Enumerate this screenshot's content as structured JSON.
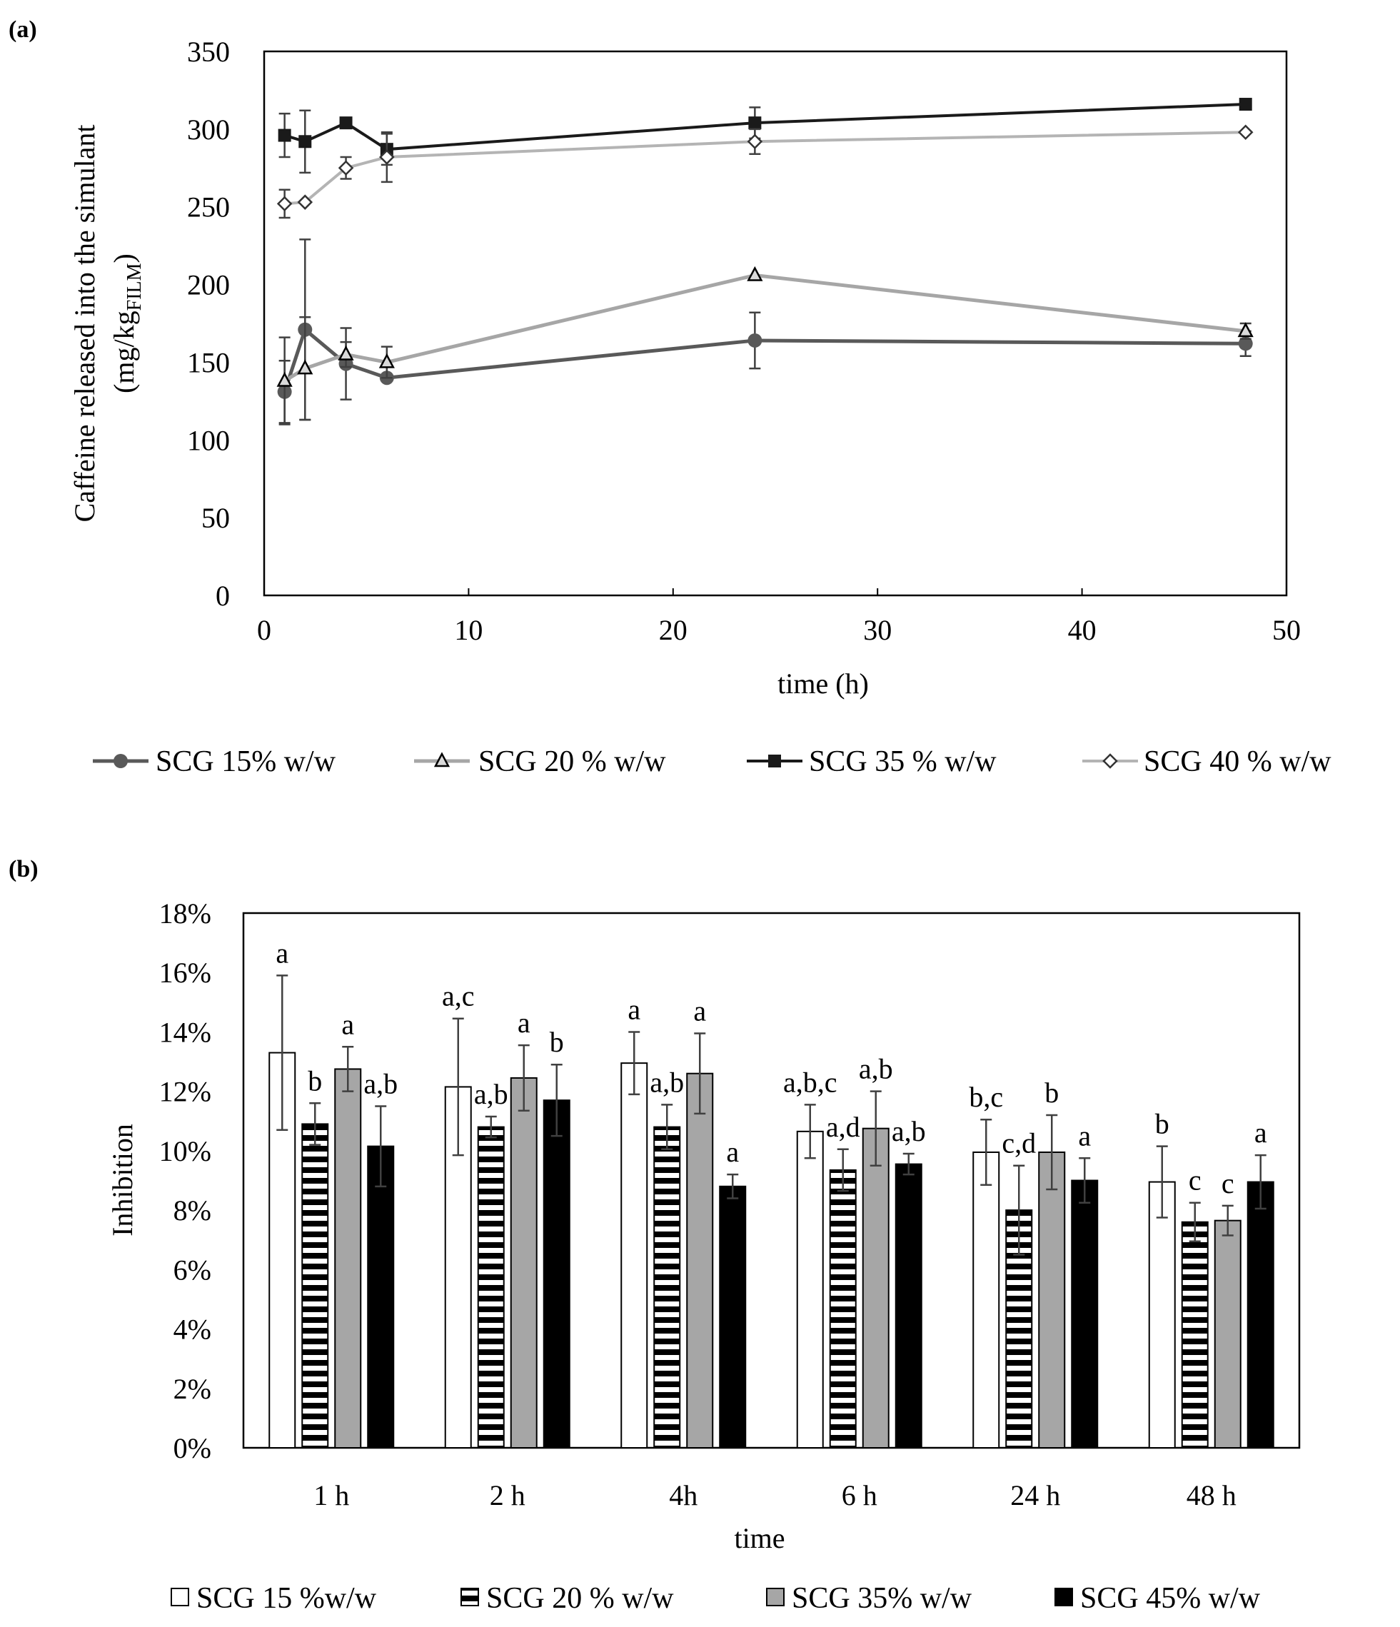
{
  "panel_a_label": "(a)",
  "panel_b_label": "(b)",
  "colors": {
    "s15_line": "#595959",
    "s20_line": "#a6a6a6",
    "s35_line": "#1a1a1a",
    "s40_line": "#b4b4b4",
    "err": "#404040",
    "bar_gray": "#a6a6a6",
    "bar_black": "#000000"
  },
  "chart_data": [
    {
      "type": "line",
      "title": "",
      "xlabel": "time (h)",
      "ylabel_line1": "Caffeine released into the simulant",
      "ylabel_line2_main": "(mg/kg",
      "ylabel_line2_sub": "FILM",
      "ylabel_line2_close": ")",
      "xlim": [
        0,
        50
      ],
      "ylim": [
        0,
        350
      ],
      "xticks": [
        0,
        10,
        20,
        30,
        40,
        50
      ],
      "yticks": [
        0,
        50,
        100,
        150,
        200,
        250,
        300,
        350
      ],
      "x": [
        1,
        2,
        4,
        6,
        24,
        48
      ],
      "legend_position": "bottom",
      "series": [
        {
          "name": "SCG 15% w/w",
          "marker": "circle",
          "values": [
            131,
            171,
            149,
            140,
            164,
            162
          ],
          "errors": [
            20,
            58,
            23,
            0,
            18,
            8
          ]
        },
        {
          "name": "SCG 20 % w/w",
          "marker": "triangle",
          "values": [
            138,
            146,
            155,
            150,
            206,
            170
          ],
          "errors": [
            28,
            33,
            8,
            10,
            0,
            5
          ]
        },
        {
          "name": "SCG 35 % w/w",
          "marker": "square",
          "values": [
            296,
            292,
            304,
            287,
            304,
            316
          ],
          "errors": [
            14,
            20,
            0,
            10,
            10,
            0
          ]
        },
        {
          "name": "SCG 40 % w/w",
          "marker": "diamond",
          "values": [
            252,
            253,
            275,
            282,
            292,
            298
          ],
          "errors": [
            9,
            0,
            7,
            16,
            8,
            0
          ]
        }
      ]
    },
    {
      "type": "bar",
      "title": "",
      "xlabel": "time",
      "ylabel": "Inhibition",
      "ylim": [
        0,
        18
      ],
      "yticks": [
        0,
        2,
        4,
        6,
        8,
        10,
        12,
        14,
        16,
        18
      ],
      "ytick_labels": [
        "0%",
        "2%",
        "4%",
        "6%",
        "8%",
        "10%",
        "12%",
        "14%",
        "16%",
        "18%"
      ],
      "categories": [
        "1 h",
        "2 h",
        "4h",
        "6 h",
        "24 h",
        "48 h"
      ],
      "legend_position": "bottom",
      "series": [
        {
          "name": "SCG 15 %w/w",
          "fill": "white",
          "values": [
            13.3,
            12.15,
            12.95,
            10.65,
            9.95,
            8.95
          ],
          "errors": [
            2.6,
            2.3,
            1.05,
            0.9,
            1.1,
            1.2
          ],
          "letters": [
            "a",
            "a,c",
            "a",
            "a,b,c",
            "b,c",
            "b"
          ]
        },
        {
          "name": "SCG 20 % w/w",
          "fill": "horizontal-stripes",
          "values": [
            10.9,
            10.8,
            10.8,
            9.35,
            8.0,
            7.6
          ],
          "errors": [
            0.7,
            0.35,
            0.75,
            0.7,
            1.5,
            0.65
          ],
          "letters": [
            "b",
            "a,b",
            "a,b",
            "a,d",
            "c,d",
            "c"
          ]
        },
        {
          "name": "SCG 35% w/w",
          "fill": "gray",
          "values": [
            12.75,
            12.45,
            12.6,
            10.75,
            9.95,
            7.65
          ],
          "errors": [
            0.75,
            1.1,
            1.35,
            1.25,
            1.25,
            0.5
          ],
          "letters": [
            "a",
            "a",
            "a",
            "a,b",
            "b",
            "c"
          ]
        },
        {
          "name": "SCG 45% w/w",
          "fill": "black",
          "values": [
            10.15,
            11.7,
            8.8,
            9.55,
            9.0,
            8.95
          ],
          "errors": [
            1.35,
            1.2,
            0.4,
            0.35,
            0.75,
            0.9
          ],
          "letters": [
            "a,b",
            "b",
            "a",
            "a,b",
            "a",
            "a"
          ]
        }
      ]
    }
  ]
}
